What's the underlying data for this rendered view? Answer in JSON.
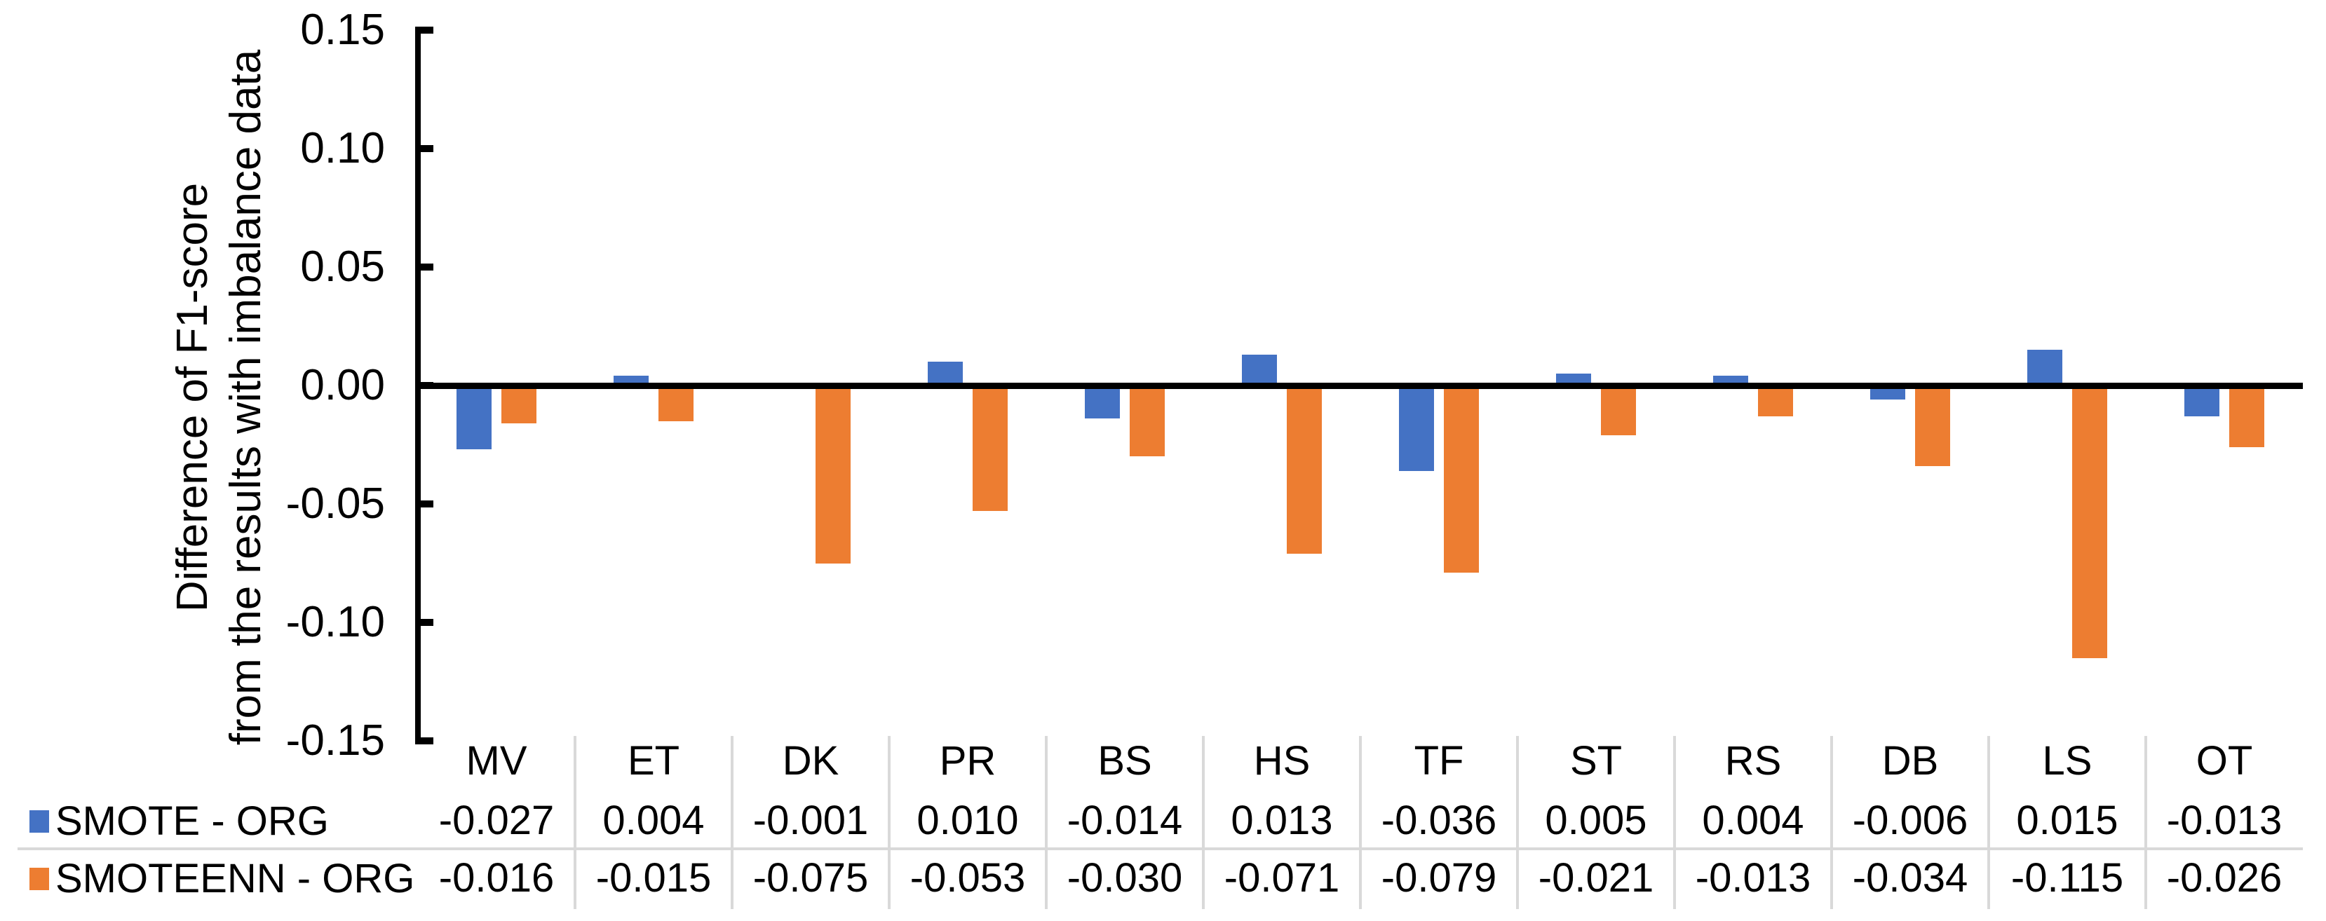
{
  "chart_data": {
    "type": "bar",
    "title": "",
    "categories": [
      "MV",
      "ET",
      "DK",
      "PR",
      "BS",
      "HS",
      "TF",
      "ST",
      "RS",
      "DB",
      "LS",
      "OT"
    ],
    "series": [
      {
        "name": "SMOTE - ORG",
        "color": "#4472C4",
        "values": [
          -0.027,
          0.004,
          -0.001,
          0.01,
          -0.014,
          0.013,
          -0.036,
          0.005,
          0.004,
          -0.006,
          0.015,
          -0.013
        ]
      },
      {
        "name": "SMOTEENN - ORG",
        "color": "#ED7D31",
        "values": [
          -0.016,
          -0.015,
          -0.075,
          -0.053,
          -0.03,
          -0.071,
          -0.079,
          -0.021,
          -0.013,
          -0.034,
          -0.115,
          -0.026
        ]
      }
    ],
    "ylabel_line1": "Difference of F1-score",
    "ylabel_line2": "from the results with imbalance data",
    "xlabel": "",
    "ylim": [
      -0.15,
      0.15
    ],
    "y_ticks": [
      0.15,
      0.1,
      0.05,
      0.0,
      -0.05,
      -0.1,
      -0.15
    ],
    "tick_decimals": 2,
    "value_decimals": 3,
    "grid": false,
    "legend_position": "table-left",
    "colors": {
      "axis": "#000000",
      "table_line": "#D9D9D9",
      "text": "#000000",
      "background": "#FFFFFF"
    }
  }
}
